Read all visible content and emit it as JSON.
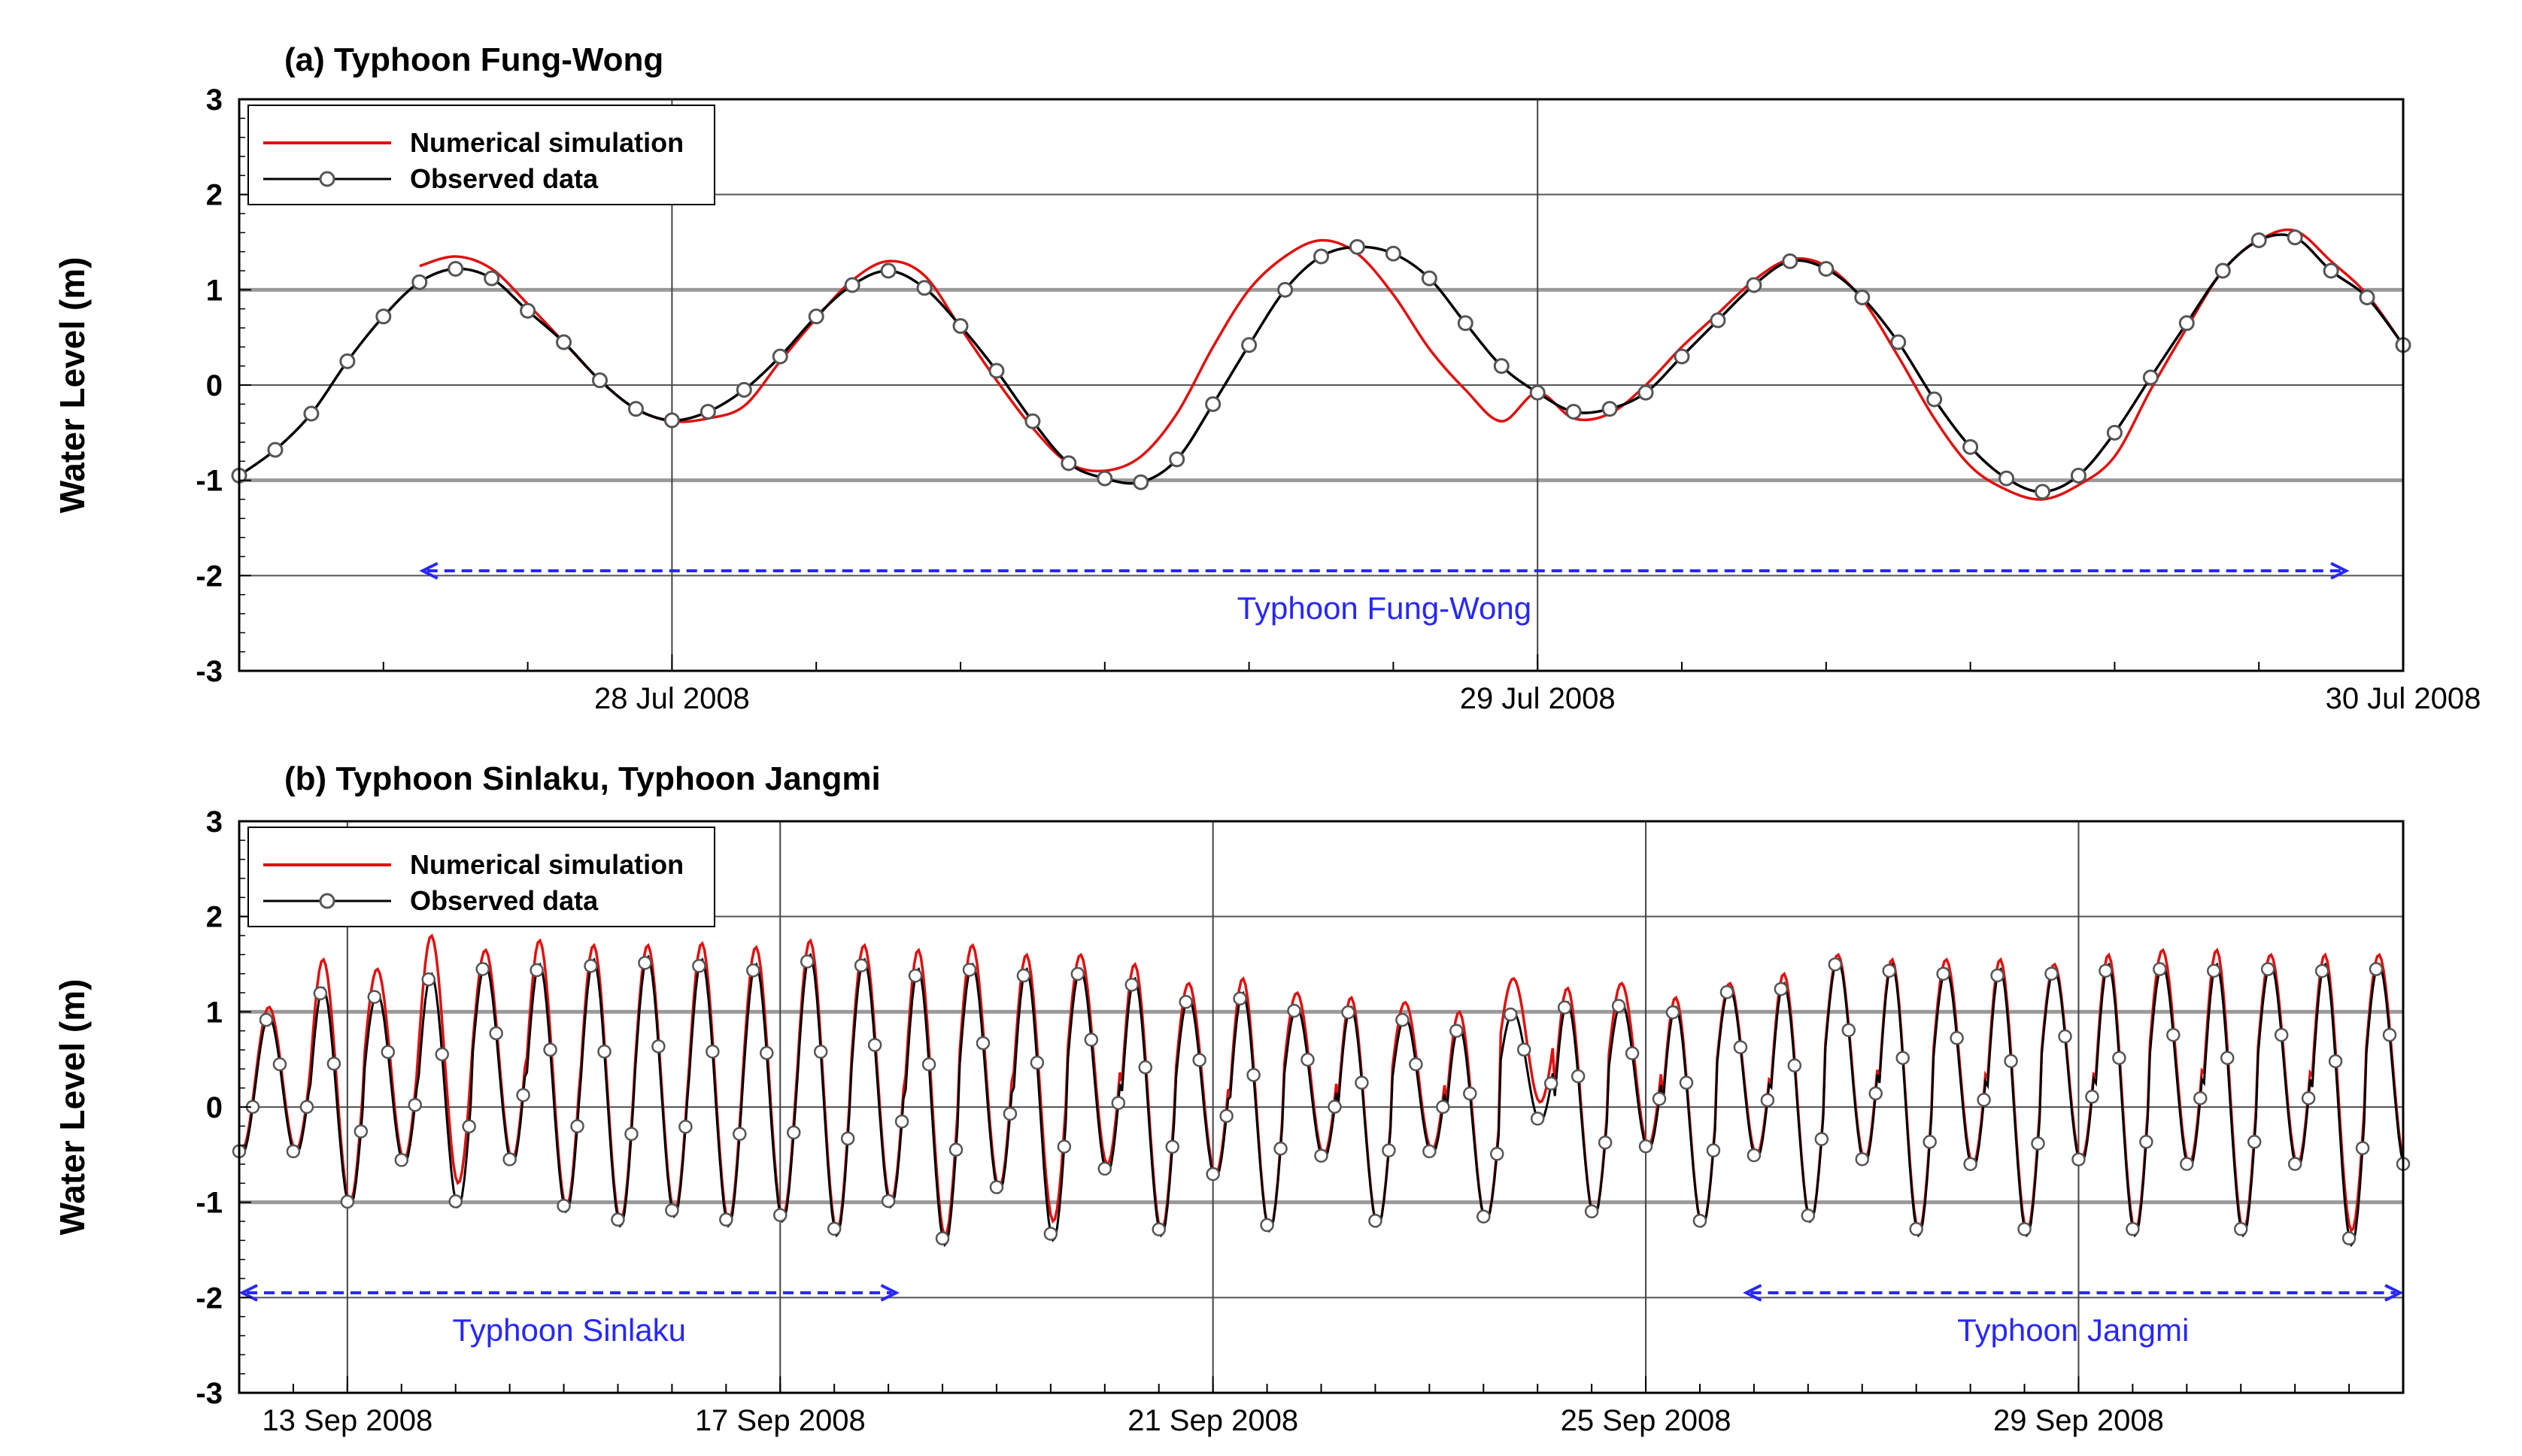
{
  "chart_data": [
    {
      "type": "line",
      "title": "(a) Typhoon Fung-Wong",
      "xlabel": "",
      "ylabel": "Water Level (m)",
      "ylim": [
        -3,
        3
      ],
      "yticks": [
        "3",
        "2",
        "1",
        "0",
        "-1",
        "-2",
        "-3"
      ],
      "xlim_hours": [
        -12,
        48
      ],
      "xticks": [
        {
          "label": "28 Jul 2008",
          "hour": 0
        },
        {
          "label": "29 Jul 2008",
          "hour": 24
        },
        {
          "label": "30 Jul 2008",
          "hour": 48
        }
      ],
      "grid": true,
      "legend_position": "top-left",
      "series": [
        {
          "name": "Numerical simulation",
          "color": "#e01010",
          "x": [
            -7,
            -6,
            -5,
            -4,
            -3,
            -2,
            -1,
            0,
            1,
            2,
            3,
            4,
            5,
            6,
            7,
            8,
            9,
            10,
            11,
            12,
            13,
            14,
            15,
            16,
            17,
            18,
            19,
            20,
            21,
            22,
            23,
            24,
            25,
            26,
            27,
            28,
            29,
            30,
            31,
            32,
            33,
            34,
            35,
            36,
            37,
            38,
            39,
            40,
            41,
            42,
            43,
            44,
            45,
            46,
            47,
            48
          ],
          "values": [
            1.25,
            1.35,
            1.22,
            0.85,
            0.45,
            0.05,
            -0.25,
            -0.38,
            -0.35,
            -0.22,
            0.25,
            0.7,
            1.1,
            1.3,
            1.15,
            0.6,
            0.05,
            -0.45,
            -0.82,
            -0.9,
            -0.75,
            -0.3,
            0.4,
            1.0,
            1.35,
            1.52,
            1.38,
            0.95,
            0.38,
            -0.05,
            -0.38,
            -0.08,
            -0.35,
            -0.3,
            0.0,
            0.4,
            0.75,
            1.1,
            1.32,
            1.25,
            0.9,
            0.3,
            -0.35,
            -0.85,
            -1.1,
            -1.2,
            -1.05,
            -0.75,
            -0.05,
            0.6,
            1.2,
            1.52,
            1.62,
            1.3,
            0.95,
            0.42
          ]
        },
        {
          "name": "Observed data",
          "color": "#000000",
          "x": [
            -12,
            -11,
            -10,
            -9,
            -8,
            -7,
            -6,
            -5,
            -4,
            -3,
            -2,
            -1,
            0,
            1,
            2,
            3,
            4,
            5,
            6,
            7,
            8,
            9,
            10,
            11,
            12,
            13,
            14,
            15,
            16,
            17,
            18,
            19,
            20,
            21,
            22,
            23,
            24,
            25,
            26,
            27,
            28,
            29,
            30,
            31,
            32,
            33,
            34,
            35,
            36,
            37,
            38,
            39,
            40,
            41,
            42,
            43,
            44,
            45,
            46,
            47,
            48
          ],
          "values": [
            -0.95,
            -0.68,
            -0.3,
            0.25,
            0.72,
            1.08,
            1.22,
            1.12,
            0.78,
            0.45,
            0.05,
            -0.25,
            -0.37,
            -0.28,
            -0.05,
            0.3,
            0.72,
            1.05,
            1.2,
            1.02,
            0.62,
            0.15,
            -0.38,
            -0.82,
            -0.98,
            -1.02,
            -0.78,
            -0.2,
            0.42,
            1.0,
            1.35,
            1.45,
            1.38,
            1.12,
            0.65,
            0.2,
            -0.08,
            -0.28,
            -0.25,
            -0.08,
            0.3,
            0.68,
            1.05,
            1.3,
            1.22,
            0.92,
            0.45,
            -0.15,
            -0.65,
            -0.98,
            -1.12,
            -0.95,
            -0.5,
            0.08,
            0.65,
            1.2,
            1.52,
            1.55,
            1.2,
            0.92,
            0.42
          ]
        }
      ],
      "annotations": [
        {
          "text": "Typhoon Fung-Wong",
          "x_start_hour": -7,
          "x_end_hour": 46.5,
          "y": -1.95,
          "color": "#2727ff"
        }
      ]
    },
    {
      "type": "line",
      "title": "(b) Typhoon Sinlaku, Typhoon Jangmi",
      "xlabel": "",
      "ylabel": "Water Level (m)",
      "ylim": [
        -3,
        3
      ],
      "yticks": [
        "3",
        "2",
        "1",
        "0",
        "-1",
        "-2",
        "-3"
      ],
      "xlim_days": [
        0,
        20
      ],
      "xticks": [
        {
          "label": "13 Sep 2008",
          "day": 1
        },
        {
          "label": "17 Sep 2008",
          "day": 5
        },
        {
          "label": "21 Sep 2008",
          "day": 9
        },
        {
          "label": "25 Sep 2008",
          "day": 13
        },
        {
          "label": "29 Sep 2008",
          "day": 17
        }
      ],
      "grid": true,
      "legend_position": "top-left",
      "series": [
        {
          "name": "Numerical simulation",
          "color": "#e01010",
          "highs": [
            1.05,
            1.55,
            1.45,
            1.8,
            1.65,
            1.75,
            1.7,
            1.7,
            1.72,
            1.68,
            1.75,
            1.7,
            1.65,
            1.7,
            1.6,
            1.6,
            1.5,
            1.3,
            1.35,
            1.2,
            1.15,
            1.1,
            1.0,
            1.35,
            1.25,
            1.3,
            1.15,
            1.3,
            1.4,
            1.6,
            1.55,
            1.55,
            1.55,
            1.5,
            1.6,
            1.65,
            1.65,
            1.6,
            1.6,
            1.6
          ],
          "lows": [
            -0.45,
            -1.0,
            -0.55,
            -0.8,
            -0.55,
            -1.05,
            -1.2,
            -1.1,
            -1.2,
            -1.15,
            -1.3,
            -1.0,
            -1.35,
            -0.85,
            -1.2,
            -0.6,
            -1.3,
            -0.7,
            -1.3,
            -0.5,
            -1.25,
            -0.45,
            -1.2,
            0.05,
            -1.15,
            -0.4,
            -1.25,
            -0.5,
            -1.2,
            -0.55,
            -1.3,
            -0.6,
            -1.3,
            -0.55,
            -1.3,
            -0.6,
            -1.3,
            -0.6,
            -1.3,
            -0.6
          ]
        },
        {
          "name": "Observed data",
          "color": "#000000",
          "highs": [
            0.95,
            1.25,
            1.2,
            1.4,
            1.5,
            1.5,
            1.55,
            1.58,
            1.55,
            1.5,
            1.6,
            1.55,
            1.45,
            1.5,
            1.45,
            1.45,
            1.35,
            1.15,
            1.2,
            1.05,
            1.05,
            0.95,
            0.85,
            1.0,
            1.1,
            1.1,
            1.05,
            1.25,
            1.3,
            1.55,
            1.5,
            1.45,
            1.45,
            1.45,
            1.5,
            1.5,
            1.5,
            1.5,
            1.5,
            1.5
          ],
          "lows": [
            -0.5,
            -1.05,
            -0.6,
            -1.05,
            -0.6,
            -1.1,
            -1.25,
            -1.15,
            -1.25,
            -1.2,
            -1.35,
            -1.05,
            -1.45,
            -0.9,
            -1.4,
            -0.7,
            -1.35,
            -0.75,
            -1.3,
            -0.55,
            -1.25,
            -0.5,
            -1.2,
            -0.15,
            -1.15,
            -0.45,
            -1.25,
            -0.55,
            -1.2,
            -0.6,
            -1.35,
            -0.65,
            -1.35,
            -0.6,
            -1.35,
            -0.65,
            -1.35,
            -0.65,
            -1.45,
            -0.65
          ]
        }
      ],
      "annotations": [
        {
          "text": "Typhoon Sinlaku",
          "x_start_day": 0,
          "x_end_day": 6.1,
          "y": -1.95,
          "color": "#2727ff"
        },
        {
          "text": "Typhoon Jangmi",
          "x_start_day": 13.9,
          "x_end_day": 20,
          "y": -1.95,
          "color": "#2727ff"
        }
      ]
    }
  ]
}
